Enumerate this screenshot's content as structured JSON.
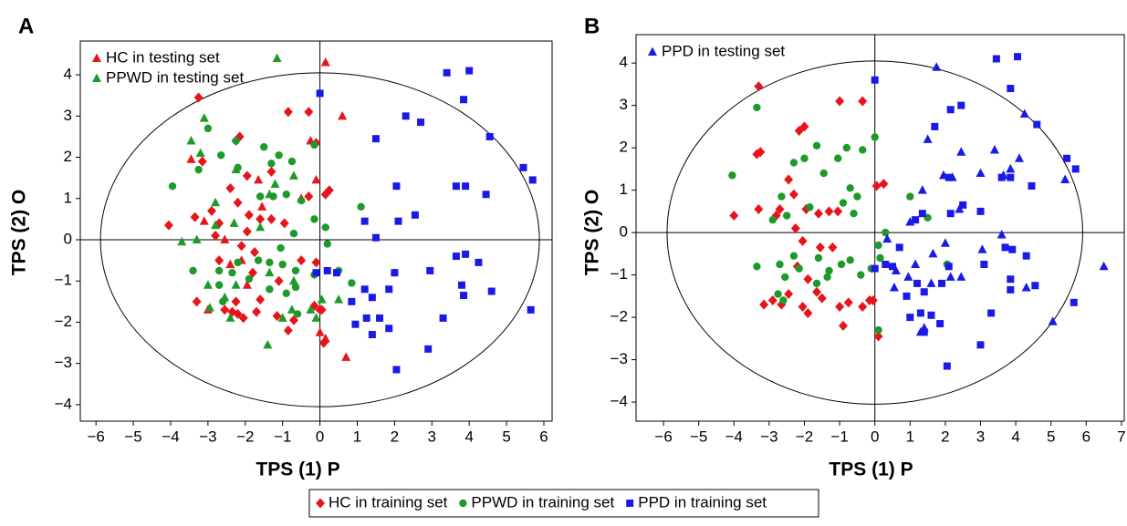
{
  "chart_data": [
    {
      "type": "scatter",
      "label": "A",
      "xlabel": "TPS (1) P",
      "ylabel": "TPS (2) O",
      "xlim": [
        -6.42,
        6.22
      ],
      "ylim": [
        -4.4,
        4.82
      ],
      "xticks": [
        {
          "value": -6,
          "label": "−6"
        },
        {
          "value": -5,
          "label": "−5"
        },
        {
          "value": -4,
          "label": "−4"
        },
        {
          "value": -3,
          "label": "−3"
        },
        {
          "value": -2,
          "label": "−2"
        },
        {
          "value": -1,
          "label": "−1"
        },
        0,
        1,
        2,
        3,
        4,
        5,
        6
      ],
      "yticks": [
        {
          "value": -4,
          "label": "−4"
        },
        {
          "value": -3,
          "label": "−3"
        },
        {
          "value": -2,
          "label": "−2"
        },
        {
          "value": -1,
          "label": "−1"
        },
        0,
        1,
        2,
        3,
        4
      ],
      "ellipse": [
        5.88,
        4.05
      ],
      "legend": "upper left",
      "series": [
        {
          "color": "#e8141b",
          "marker": "diamond",
          "x": [
            -3.25,
            -0.85,
            -0.3,
            -2.15,
            -2.25,
            -3.15,
            -0.1,
            -1.95,
            -1.3,
            -2.4,
            -0.3,
            0.15,
            0.25,
            -4.05,
            -3.35,
            -2.7,
            -2.2,
            -2.9,
            -1.9,
            -1.6,
            -1.3,
            -0.95,
            -1.95,
            -2.1,
            -2.8,
            -1.75,
            -0.1,
            -1.1,
            -1.8,
            -2.25,
            -1.6,
            -2.2,
            -2.35,
            -2.55,
            -2.05,
            -1.7,
            -1.15,
            -0.7,
            -0.85,
            -0.15,
            0,
            0.05,
            0.1,
            -3.3,
            -0.5,
            -2.7
          ],
          "values": [
            3.45,
            3.1,
            3.1,
            2.5,
            2.4,
            1.9,
            2.35,
            1.55,
            1.65,
            1.25,
            1.05,
            1.1,
            1.2,
            0.35,
            0.55,
            0.4,
            0.9,
            0.7,
            0.6,
            0.5,
            0.5,
            0.4,
            0.2,
            -0.15,
            0.1,
            -0.3,
            -0.55,
            -1.0,
            -0.8,
            -1.5,
            -1.45,
            -1.8,
            -1.75,
            -1.7,
            -1.9,
            -1.75,
            -1.85,
            -1.95,
            -2.2,
            -1.6,
            -1.7,
            -1.7,
            -2.5,
            -1.5,
            -0.5,
            -0.5
          ]
        },
        {
          "name": "HC in testing set",
          "color": "#e8141b",
          "marker": "triangle",
          "x": [
            0.15,
            0.6,
            -0.25,
            -1.65,
            -3.45,
            -3.1,
            -2.55,
            -1.95,
            -0.1,
            -0.5,
            0.7,
            0,
            0.15,
            -2.1,
            -2.4,
            -1.55,
            -3.0
          ],
          "values": [
            4.3,
            3.0,
            2.4,
            1.45,
            1.95,
            0.45,
            0,
            -1.1,
            1.45,
            1.0,
            -2.85,
            -2.25,
            -2.4,
            -0.5,
            -0.6,
            0.8,
            -1.7
          ]
        },
        {
          "color": "#1e9a2a",
          "marker": "circle",
          "x": [
            -3.95,
            -3.25,
            -3.0,
            -2.65,
            -2.25,
            -2.2,
            -1.5,
            -1.3,
            -1.1,
            -0.75,
            -0.15,
            -1.6,
            -1.25,
            -0.9,
            -0.5,
            -0.15,
            1.1,
            -1.05,
            -0.7,
            0.2,
            0.5,
            2.0,
            0.85,
            -3.4,
            -2.7,
            -2.35,
            -1.65,
            -1.35,
            -1.0,
            -0.65,
            -2.7,
            -1.35,
            -0.9,
            -0.65,
            -1.9,
            -0.15,
            -2.6,
            -0.6,
            0.15,
            -2.2
          ],
          "values": [
            1.3,
            1.7,
            2.7,
            2.05,
            2.4,
            1.75,
            2.25,
            1.85,
            2.05,
            1.9,
            2.3,
            1.05,
            1.05,
            1.1,
            0.95,
            0.5,
            0.8,
            -0.2,
            0.15,
            -0.1,
            -0.75,
            -0.8,
            -1.05,
            -0.75,
            -0.75,
            -0.8,
            -0.5,
            -0.55,
            -0.6,
            -0.75,
            -1.1,
            -1.2,
            -1.3,
            -1.15,
            -0.95,
            -0.85,
            -1.5,
            -1.8,
            0.3,
            -0.55
          ]
        },
        {
          "name": "PPWD in testing set",
          "color": "#1e9a2a",
          "marker": "triangle",
          "x": [
            -1.15,
            -3.1,
            -3.45,
            -3.2,
            -2.25,
            -2.8,
            -3.7,
            -3.3,
            -2.8,
            -2.3,
            -1.6,
            -1.35,
            -1.2,
            -0.7,
            -1.35,
            -2.25,
            -2.55,
            -0.7,
            -0.25,
            -1.4,
            0.5,
            0.05,
            -0.1,
            -0.75,
            -2.95,
            -3.0,
            -2.4,
            -1.0
          ],
          "values": [
            4.4,
            2.95,
            2.4,
            2.1,
            1.7,
            0.9,
            -0.05,
            0,
            0.35,
            0.4,
            0.3,
            1.1,
            1.35,
            1.55,
            -0.8,
            -1.1,
            -1.4,
            -1.0,
            -1.7,
            -2.55,
            -1.45,
            -1.45,
            -1.9,
            -1.7,
            -1.65,
            -1.1,
            -1.9,
            -1.9
          ]
        },
        {
          "color": "#1a1ae6",
          "marker": "square",
          "x": [
            0,
            3.4,
            4.0,
            3.85,
            2.7,
            2.3,
            4.55,
            1.5,
            5.45,
            5.7,
            3.65,
            3.9,
            4.45,
            2.05,
            2.55,
            2.1,
            1.2,
            1.5,
            3.65,
            3.9,
            4.25,
            2.95,
            2.0,
            1.85,
            1.4,
            0.85,
            3.8,
            3.85,
            4.6,
            5.65,
            3.3,
            1.6,
            1.25,
            0.95,
            1.4,
            1.85,
            2.9,
            2.05,
            -0.1,
            0.2,
            0.45,
            1.2
          ],
          "values": [
            3.55,
            4.05,
            4.1,
            3.4,
            2.85,
            3.0,
            2.5,
            2.45,
            1.75,
            1.45,
            1.3,
            1.3,
            1.1,
            1.3,
            0.6,
            0.45,
            0.45,
            0.05,
            -0.4,
            -0.35,
            -0.55,
            -0.75,
            -0.8,
            -1.2,
            -1.4,
            -1.5,
            -1.1,
            -1.35,
            -1.25,
            -1.7,
            -1.9,
            -1.9,
            -1.9,
            -2.05,
            -2.3,
            -2.15,
            -2.65,
            -3.15,
            -0.8,
            -0.75,
            -0.8,
            -1.2
          ]
        }
      ]
    },
    {
      "type": "scatter",
      "label": "B",
      "xlabel": "TPS (1) P",
      "ylabel": "TPS (2) O",
      "xlim": [
        -6.78,
        7.08
      ],
      "ylim": [
        -4.45,
        4.67
      ],
      "xticks": [
        {
          "value": -6,
          "label": "−6"
        },
        {
          "value": -5,
          "label": "−5"
        },
        {
          "value": -4,
          "label": "−4"
        },
        {
          "value": -3,
          "label": "−3"
        },
        {
          "value": -2,
          "label": "−2"
        },
        {
          "value": -1,
          "label": "−1"
        },
        0,
        1,
        2,
        3,
        4,
        5,
        6,
        7
      ],
      "yticks": [
        {
          "value": -4,
          "label": "−4"
        },
        {
          "value": -3,
          "label": "−3"
        },
        {
          "value": -2,
          "label": "−2"
        },
        {
          "value": -1,
          "label": "−1"
        },
        0,
        1,
        2,
        3,
        4
      ],
      "ellipse": [
        5.9,
        4.05
      ],
      "legend": "upper left",
      "series": [
        {
          "color": "#e8141b",
          "marker": "diamond",
          "x": [
            -3.3,
            -1.0,
            -0.35,
            -2.0,
            -2.15,
            -3.25,
            -3.35,
            -2.45,
            -4.0,
            -3.3,
            -2.8,
            -2.7,
            -2.3,
            -1.95,
            -1.6,
            -1.3,
            -1.05,
            -2.25,
            -2.05,
            -1.55,
            -1.2,
            0.05,
            0.25,
            -3.15,
            -2.9,
            -2.65,
            -2.45,
            -2.05,
            -1.9,
            -1.65,
            -1.5,
            -1.0,
            -0.75,
            -0.9,
            -0.35,
            -0.15,
            -0.05,
            0.1,
            -1.9,
            -2.2
          ],
          "values": [
            3.45,
            3.1,
            3.1,
            2.5,
            2.4,
            1.9,
            1.85,
            1.25,
            0.4,
            0.55,
            0.4,
            0.55,
            0.9,
            0.55,
            0.45,
            0.5,
            0.5,
            0.1,
            -0.2,
            -0.35,
            -0.35,
            1.1,
            1.15,
            -1.7,
            -1.6,
            -1.7,
            -1.45,
            -1.75,
            -1.9,
            -1.4,
            -1.55,
            -1.75,
            -1.65,
            -2.2,
            -1.75,
            -1.6,
            -1.6,
            -2.45,
            -1.1,
            -0.8
          ]
        },
        {
          "color": "#1e9a2a",
          "marker": "circle",
          "x": [
            -4.05,
            -3.35,
            -2.65,
            -2.5,
            -2.3,
            -2.0,
            -1.65,
            -1.45,
            -1.05,
            -0.8,
            -0.35,
            0,
            -0.7,
            -0.5,
            -0.9,
            -0.6,
            1.0,
            0.3,
            0.1,
            -0.1,
            0.15,
            -3.35,
            -2.7,
            -2.55,
            -2.3,
            -2.15,
            -1.6,
            -1.3,
            -0.95,
            -0.7,
            -2.75,
            -2.6,
            -1.65,
            -1.35,
            -0.4,
            0.1,
            2.05,
            1.5,
            -1.85,
            -2.9
          ],
          "values": [
            1.35,
            2.95,
            0.85,
            0.4,
            1.65,
            1.75,
            2.05,
            1.4,
            1.75,
            2.0,
            1.95,
            2.25,
            1.05,
            0.85,
            0.7,
            0.45,
            0.85,
            0,
            -0.3,
            -0.85,
            -0.6,
            -0.8,
            -0.75,
            -1.05,
            -0.55,
            -0.85,
            -0.6,
            -0.9,
            -0.75,
            -0.65,
            -1.45,
            -1.6,
            -1.2,
            -1.05,
            -1.0,
            -2.3,
            -0.75,
            0.35,
            0.6,
            0.3
          ]
        },
        {
          "color": "#1a1ae6",
          "marker": "square",
          "x": [
            0,
            3.45,
            4.05,
            3.85,
            2.15,
            2.45,
            4.6,
            1.7,
            5.45,
            5.7,
            3.6,
            3.85,
            4.45,
            2.1,
            2.5,
            2.15,
            1.15,
            1.35,
            3.0,
            3.7,
            3.9,
            4.3,
            3.1,
            2.1,
            1.9,
            1.4,
            0.9,
            3.85,
            3.85,
            4.55,
            5.65,
            3.3,
            1.6,
            1.3,
            1.0,
            1.4,
            1.85,
            3.0,
            2.05,
            0,
            0.3,
            0.5,
            1.2,
            0.7
          ],
          "values": [
            3.6,
            4.1,
            4.15,
            3.4,
            2.9,
            3.0,
            2.55,
            2.5,
            1.75,
            1.5,
            1.3,
            1.3,
            1.1,
            1.3,
            0.65,
            0.45,
            0.3,
            0.45,
            0.5,
            -0.35,
            -0.4,
            -0.55,
            -0.75,
            -0.8,
            -1.2,
            -1.4,
            -1.5,
            -1.1,
            -1.35,
            -1.25,
            -1.65,
            -1.9,
            -1.95,
            -1.9,
            -2.0,
            -2.35,
            -2.15,
            -2.65,
            -3.15,
            -0.85,
            -0.75,
            -0.8,
            -1.2,
            -0.35
          ]
        },
        {
          "name": "PPD in testing set",
          "color": "#1a1ae6",
          "marker": "triangle",
          "x": [
            1.75,
            4.25,
            1.5,
            2.45,
            3.4,
            4.1,
            3.85,
            3.65,
            3.0,
            1.95,
            2.2,
            1.35,
            2.4,
            1.0,
            3.6,
            0.35,
            5.4,
            2.0,
            1.65,
            1.15,
            0.95,
            0.6,
            2.15,
            1.6,
            2.45,
            3.05,
            4.3,
            5.05,
            6.5,
            1.3,
            1.4,
            0.55
          ],
          "values": [
            3.9,
            2.8,
            2.2,
            1.9,
            1.95,
            1.75,
            1.5,
            1.35,
            1.4,
            1.35,
            1.3,
            1.0,
            0.55,
            0.25,
            -0.05,
            -0.15,
            1.25,
            -0.25,
            -0.5,
            -0.75,
            -1.05,
            -0.9,
            -1.05,
            -1.2,
            -1.05,
            -0.4,
            -1.3,
            -2.1,
            -0.8,
            -2.35,
            -2.25,
            -1.3
          ]
        }
      ]
    }
  ],
  "legend": [
    {
      "name": "HC in training set",
      "color": "#e8141b",
      "marker": "diamond"
    },
    {
      "name": "PPWD in training set",
      "color": "#1e9a2a",
      "marker": "circle"
    },
    {
      "name": "PPD in training set",
      "color": "#1a1ae6",
      "marker": "square"
    }
  ]
}
